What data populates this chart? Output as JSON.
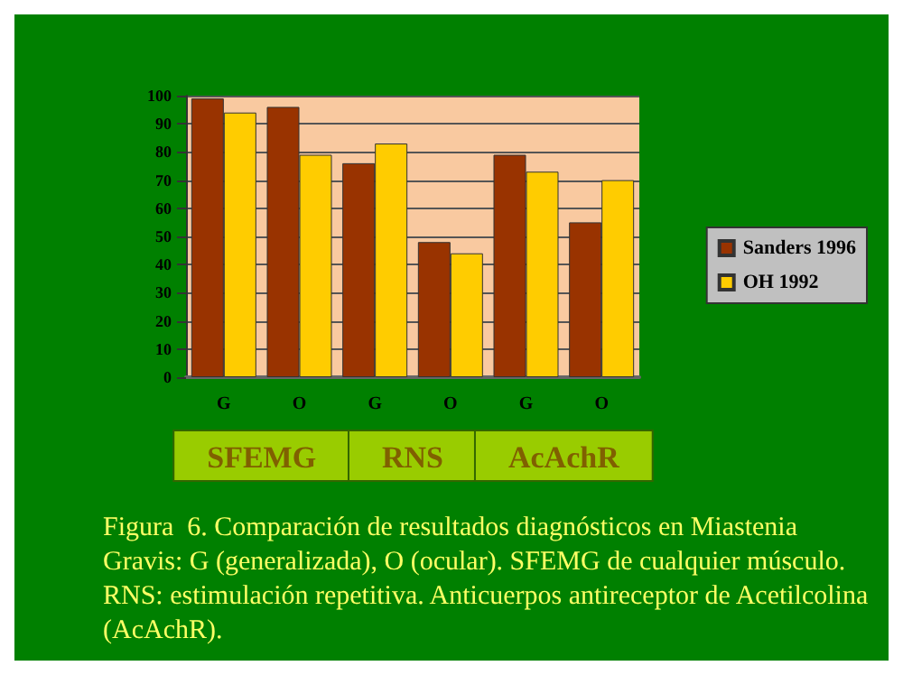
{
  "chart_data": {
    "type": "bar",
    "title": "Figura  6. Comparación de resultados diagnósticos en Miastenia Gravis: G (generalizada), O (ocular). SFEMG de cualquier músculo. RNS: estimulación repetitiva. Anticuerpos antireceptor de Acetilcolina (AcAchR).",
    "categories": [
      "G",
      "O",
      "G",
      "O",
      "G",
      "O"
    ],
    "series": [
      {
        "name": "Sanders 1996",
        "color": "#993300",
        "values": [
          99,
          96,
          76,
          48,
          79,
          55
        ]
      },
      {
        "name": "OH 1992",
        "color": "#ffcc00",
        "values": [
          94,
          79,
          83,
          44,
          73,
          70
        ]
      }
    ],
    "annotations": [
      "SFEMG",
      "RNS",
      "AcAchR"
    ],
    "ylim": [
      0,
      100
    ],
    "yticks": [
      0,
      10,
      20,
      30,
      40,
      50,
      60,
      70,
      80,
      90,
      100
    ],
    "grid": "y",
    "legend": "right"
  }
}
